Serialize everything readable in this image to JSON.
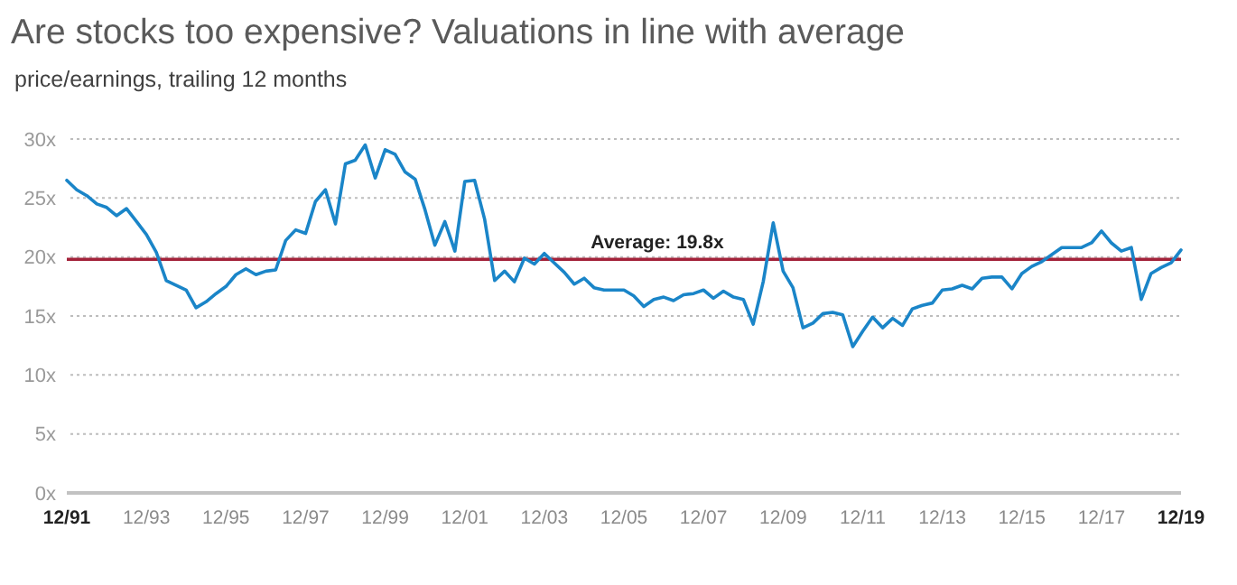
{
  "chart_data": {
    "type": "line",
    "title": "Are stocks too expensive? Valuations in line with average",
    "subtitle": "price/earnings, trailing 12 months",
    "x": [
      "1991-12",
      "1992-03",
      "1992-06",
      "1992-09",
      "1992-12",
      "1993-03",
      "1993-06",
      "1993-09",
      "1993-12",
      "1994-03",
      "1994-06",
      "1994-09",
      "1994-12",
      "1995-03",
      "1995-06",
      "1995-09",
      "1995-12",
      "1996-03",
      "1996-06",
      "1996-09",
      "1996-12",
      "1997-03",
      "1997-06",
      "1997-09",
      "1997-12",
      "1998-03",
      "1998-06",
      "1998-09",
      "1998-12",
      "1999-03",
      "1999-06",
      "1999-09",
      "1999-12",
      "2000-03",
      "2000-06",
      "2000-09",
      "2000-12",
      "2001-03",
      "2001-06",
      "2001-09",
      "2001-12",
      "2002-03",
      "2002-06",
      "2002-09",
      "2002-12",
      "2003-03",
      "2003-06",
      "2003-09",
      "2003-12",
      "2004-03",
      "2004-06",
      "2004-09",
      "2004-12",
      "2005-03",
      "2005-06",
      "2005-09",
      "2005-12",
      "2006-03",
      "2006-06",
      "2006-09",
      "2006-12",
      "2007-03",
      "2007-06",
      "2007-09",
      "2007-12",
      "2008-03",
      "2008-06",
      "2008-09",
      "2008-12",
      "2009-03",
      "2009-06",
      "2009-09",
      "2009-12",
      "2010-03",
      "2010-06",
      "2010-09",
      "2010-12",
      "2011-03",
      "2011-06",
      "2011-09",
      "2011-12",
      "2012-03",
      "2012-06",
      "2012-09",
      "2012-12",
      "2013-03",
      "2013-06",
      "2013-09",
      "2013-12",
      "2014-03",
      "2014-06",
      "2014-09",
      "2014-12",
      "2015-03",
      "2015-06",
      "2015-09",
      "2015-12",
      "2016-03",
      "2016-06",
      "2016-09",
      "2016-12",
      "2017-03",
      "2017-06",
      "2017-09",
      "2017-12",
      "2018-03",
      "2018-06",
      "2018-09",
      "2018-12",
      "2019-03",
      "2019-06",
      "2019-09",
      "2019-12"
    ],
    "series": [
      {
        "color": "#1a85c8",
        "values": [
          26.5,
          25.7,
          25.2,
          24.5,
          24.2,
          23.5,
          24.1,
          23.0,
          21.9,
          20.4,
          18.0,
          17.6,
          17.2,
          15.7,
          16.2,
          16.9,
          17.5,
          18.5,
          19.0,
          18.5,
          18.8,
          18.9,
          21.4,
          22.3,
          22.0,
          24.7,
          25.7,
          22.8,
          27.9,
          28.2,
          29.5,
          26.7,
          29.1,
          28.7,
          27.2,
          26.6,
          24.0,
          21.0,
          23.0,
          20.5,
          26.4,
          26.5,
          23.2,
          18.0,
          18.8,
          17.9,
          19.9,
          19.4,
          20.3,
          19.5,
          18.7,
          17.7,
          18.2,
          17.4,
          17.2,
          17.2,
          17.2,
          16.7,
          15.8,
          16.4,
          16.6,
          16.3,
          16.8,
          16.9,
          17.2,
          16.5,
          17.1,
          16.6,
          16.4,
          14.3,
          17.9,
          22.9,
          18.8,
          17.4,
          14.0,
          14.4,
          15.2,
          15.3,
          15.1,
          12.4,
          13.7,
          14.9,
          14.0,
          14.8,
          14.2,
          15.6,
          15.9,
          16.1,
          17.2,
          17.3,
          17.6,
          17.3,
          18.2,
          18.3,
          18.3,
          17.3,
          18.6,
          19.2,
          19.6,
          20.2,
          20.8,
          20.8,
          20.8,
          21.2,
          22.2,
          21.2,
          20.5,
          20.8,
          16.4,
          18.6,
          19.1,
          19.5,
          20.6
        ]
      }
    ],
    "xlim": [
      "1991-12",
      "2019-12"
    ],
    "xticks": [
      {
        "value": "1991-12",
        "label": "12/91"
      },
      {
        "value": "1993-12",
        "label": "12/93"
      },
      {
        "value": "1995-12",
        "label": "12/95"
      },
      {
        "value": "1997-12",
        "label": "12/97"
      },
      {
        "value": "1999-12",
        "label": "12/99"
      },
      {
        "value": "2001-12",
        "label": "12/01"
      },
      {
        "value": "2003-12",
        "label": "12/03"
      },
      {
        "value": "2005-12",
        "label": "12/05"
      },
      {
        "value": "2007-12",
        "label": "12/07"
      },
      {
        "value": "2009-12",
        "label": "12/09"
      },
      {
        "value": "2011-12",
        "label": "12/11"
      },
      {
        "value": "2013-12",
        "label": "12/13"
      },
      {
        "value": "2015-12",
        "label": "12/15"
      },
      {
        "value": "2017-12",
        "label": "12/17"
      },
      {
        "value": "2019-12",
        "label": "12/19"
      }
    ],
    "ylim": [
      0,
      30
    ],
    "yticks": [
      {
        "value": 0,
        "label": "0x"
      },
      {
        "value": 5,
        "label": "5x"
      },
      {
        "value": 10,
        "label": "10x"
      },
      {
        "value": 15,
        "label": "15x"
      },
      {
        "value": 20,
        "label": "20x"
      },
      {
        "value": 25,
        "label": "25x"
      },
      {
        "value": 30,
        "label": "30x"
      }
    ],
    "ref_lines": [
      {
        "axis": "y",
        "value": 19.8,
        "label": "Average: 19.8x",
        "color": "#a3223a"
      }
    ],
    "grid": "y",
    "marker": "none",
    "line_style": "solid"
  }
}
